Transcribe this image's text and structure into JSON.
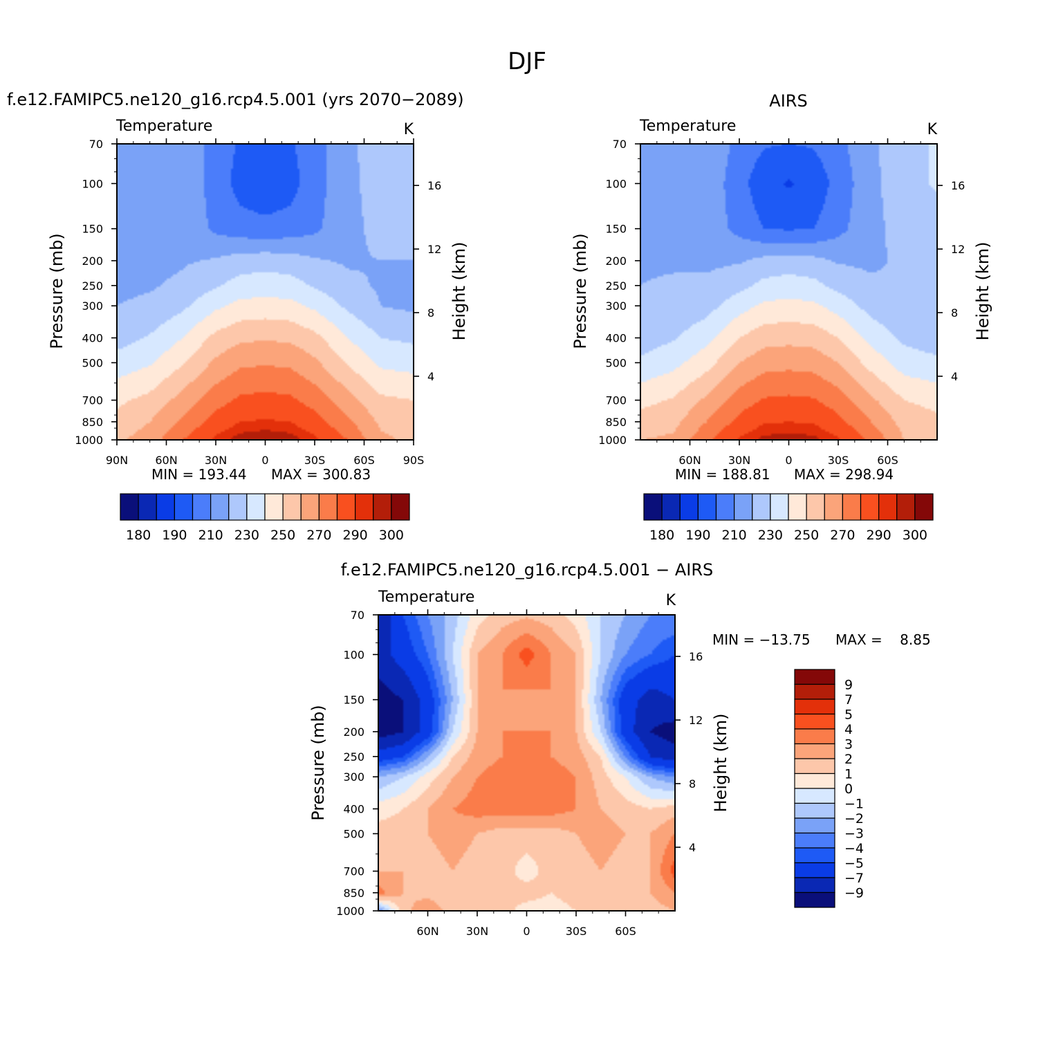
{
  "figure": {
    "title": "DJF"
  },
  "chart_data": [
    {
      "type": "heatmap",
      "id": "model",
      "title": "f.e12.FAMIPC5.ne120_g16.rcp4.5.001 (yrs 2070−2089)",
      "variable": "Temperature",
      "units": "K",
      "xlabel": "",
      "ylabel": "Pressure (mb)",
      "ylabel_right": "Height (km)",
      "x_ticks": [
        "90N",
        "60N",
        "30N",
        "0",
        "30S",
        "60S",
        "90S"
      ],
      "x_tick_values": [
        90,
        60,
        30,
        0,
        -30,
        -60,
        -90
      ],
      "xlim": [
        90,
        -90
      ],
      "y_ticks": [
        70,
        100,
        150,
        200,
        250,
        300,
        400,
        500,
        700,
        850,
        1000
      ],
      "ylim": [
        1000,
        70
      ],
      "y_scale": "log",
      "height_ticks_km": [
        16,
        12,
        8,
        4
      ],
      "min_label": "MIN =  193.44",
      "max_label": "MAX =  300.83",
      "min": 193.44,
      "max": 300.83,
      "field": {
        "lat": [
          90,
          70,
          50,
          30,
          15,
          0,
          -15,
          -30,
          -50,
          -70,
          -90
        ],
        "levels": [
          70,
          100,
          150,
          200,
          250,
          300,
          400,
          500,
          700,
          850,
          1000
        ],
        "values": [
          [
            210,
            216,
            218,
            205,
            199,
            198,
            199,
            205,
            218,
            225,
            227
          ],
          [
            212,
            216,
            217,
            206,
            196,
            193,
            196,
            206,
            217,
            225,
            227
          ],
          [
            214,
            216,
            217,
            208,
            204,
            203,
            204,
            208,
            217,
            223,
            224
          ],
          [
            216,
            217,
            219,
            221,
            225,
            226,
            225,
            221,
            219,
            220,
            220
          ],
          [
            218,
            219,
            222,
            229,
            234,
            235,
            234,
            229,
            222,
            219,
            218
          ],
          [
            220,
            222,
            228,
            238,
            243,
            244,
            243,
            238,
            228,
            220,
            218
          ],
          [
            226,
            231,
            240,
            253,
            258,
            259,
            258,
            253,
            240,
            230,
            228
          ],
          [
            234,
            239,
            249,
            262,
            268,
            269,
            268,
            262,
            249,
            238,
            236
          ],
          [
            248,
            253,
            264,
            276,
            282,
            283,
            282,
            276,
            264,
            252,
            250
          ],
          [
            253,
            260,
            272,
            284,
            290,
            291,
            290,
            284,
            272,
            258,
            255
          ],
          [
            258,
            265,
            280,
            292,
            298,
            300,
            298,
            292,
            280,
            262,
            258
          ]
        ]
      },
      "colorbar": {
        "tick_labels": [
          "180",
          "190",
          "210",
          "230",
          "250",
          "270",
          "290",
          "300"
        ],
        "levels": [
          180,
          185,
          190,
          200,
          210,
          220,
          230,
          240,
          250,
          260,
          270,
          280,
          290,
          295,
          300
        ]
      }
    },
    {
      "type": "heatmap",
      "id": "obs",
      "title": "AIRS",
      "variable": "Temperature",
      "units": "K",
      "xlabel": "",
      "ylabel": "Pressure (mb)",
      "ylabel_right": "Height (km)",
      "x_ticks": [
        "60N",
        "30N",
        "0",
        "30S",
        "60S"
      ],
      "x_tick_values": [
        60,
        30,
        0,
        -30,
        -60
      ],
      "xlim": [
        90,
        -90
      ],
      "y_ticks": [
        70,
        100,
        150,
        200,
        250,
        300,
        400,
        500,
        700,
        850,
        1000
      ],
      "ylim": [
        1000,
        70
      ],
      "y_scale": "log",
      "height_ticks_km": [
        16,
        12,
        8,
        4
      ],
      "min_label": "MIN =  188.81",
      "max_label": "MAX =  298.94",
      "min": 188.81,
      "max": 298.94,
      "field": {
        "lat": [
          90,
          70,
          50,
          30,
          15,
          0,
          -15,
          -30,
          -50,
          -70,
          -90
        ],
        "levels": [
          70,
          100,
          150,
          200,
          250,
          300,
          400,
          500,
          700,
          850,
          1000
        ],
        "values": [
          [
            216,
            217,
            218,
            207,
            201,
            200,
            201,
            207,
            218,
            227,
            231
          ],
          [
            217,
            218,
            217,
            204,
            193,
            189,
            193,
            204,
            217,
            227,
            231
          ],
          [
            218,
            219,
            216,
            207,
            200,
            199,
            200,
            207,
            217,
            224,
            226
          ],
          [
            219,
            219,
            218,
            219,
            223,
            224,
            223,
            219,
            218,
            222,
            222
          ],
          [
            220,
            221,
            222,
            227,
            233,
            235,
            233,
            227,
            222,
            221,
            220
          ],
          [
            221,
            222,
            226,
            236,
            242,
            243,
            242,
            236,
            226,
            221,
            220
          ],
          [
            225,
            229,
            237,
            250,
            256,
            257,
            256,
            250,
            237,
            228,
            225
          ],
          [
            232,
            237,
            246,
            260,
            266,
            267,
            266,
            260,
            246,
            235,
            232
          ],
          [
            247,
            251,
            262,
            275,
            281,
            282,
            281,
            275,
            262,
            250,
            247
          ],
          [
            254,
            257,
            270,
            283,
            289,
            290,
            289,
            283,
            270,
            256,
            252
          ],
          [
            260,
            262,
            278,
            291,
            297,
            298,
            297,
            291,
            278,
            260,
            256
          ]
        ]
      },
      "colorbar": {
        "tick_labels": [
          "180",
          "190",
          "210",
          "230",
          "250",
          "270",
          "290",
          "300"
        ],
        "levels": [
          180,
          185,
          190,
          200,
          210,
          220,
          230,
          240,
          250,
          260,
          270,
          280,
          290,
          295,
          300
        ]
      }
    },
    {
      "type": "heatmap",
      "id": "diff",
      "title": "f.e12.FAMIPC5.ne120_g16.rcp4.5.001 − AIRS",
      "variable": "Temperature",
      "units": "K",
      "xlabel": "",
      "ylabel": "Pressure (mb)",
      "ylabel_right": "Height (km)",
      "x_ticks": [
        "60N",
        "30N",
        "0",
        "30S",
        "60S"
      ],
      "x_tick_values": [
        60,
        30,
        0,
        -30,
        -60
      ],
      "xlim": [
        90,
        -90
      ],
      "y_ticks": [
        70,
        100,
        150,
        200,
        250,
        300,
        400,
        500,
        700,
        850,
        1000
      ],
      "ylim": [
        1000,
        70
      ],
      "y_scale": "log",
      "height_ticks_km": [
        16,
        12,
        8,
        4
      ],
      "min_label": "MIN = −13.75",
      "max_label": "MAX =    8.85",
      "min": -13.75,
      "max": 8.85,
      "field": {
        "lat": [
          90,
          75,
          60,
          45,
          30,
          15,
          0,
          -15,
          -30,
          -45,
          -60,
          -75,
          -90
        ],
        "levels": [
          70,
          100,
          150,
          200,
          250,
          300,
          400,
          500,
          700,
          850,
          1000
        ],
        "values": [
          [
            -9,
            -5,
            -3,
            -1.5,
            0.5,
            1.5,
            1.8,
            1.5,
            0.5,
            -1,
            -2,
            -3,
            -3
          ],
          [
            -8,
            -6,
            -4,
            -1,
            2,
            3,
            4.5,
            3,
            2,
            -1,
            -3,
            -4,
            -5
          ],
          [
            -10,
            -9,
            -6,
            -2,
            2,
            3,
            2.5,
            3,
            2,
            -2,
            -6,
            -8,
            -7
          ],
          [
            -10,
            -9,
            -6,
            -1,
            2,
            3,
            3,
            3,
            2,
            -1,
            -6,
            -9,
            -10
          ],
          [
            -6,
            -5,
            -2,
            1,
            2.5,
            3,
            3.5,
            3,
            2.5,
            1,
            -3,
            -7,
            -8
          ],
          [
            -2,
            -1,
            0.5,
            2,
            3,
            3.5,
            3.5,
            3.5,
            3,
            1.5,
            0,
            -2,
            -3
          ],
          [
            0.5,
            1,
            2,
            3,
            3.5,
            3.5,
            3.5,
            3.5,
            3,
            2,
            1.5,
            1,
            1.5
          ],
          [
            1.5,
            1.5,
            2,
            2.5,
            2,
            1.5,
            1.5,
            1.5,
            2,
            2.5,
            2,
            2,
            3
          ],
          [
            2,
            2,
            1.5,
            2,
            1.5,
            1.5,
            0.5,
            1.5,
            1.5,
            2,
            1.5,
            2,
            4.5
          ],
          [
            3.5,
            2,
            1.5,
            1,
            1.5,
            1,
            1.5,
            1,
            1.5,
            1.5,
            1.5,
            2,
            3
          ],
          [
            -3,
            1.5,
            3,
            1.5,
            1,
            1.5,
            0.5,
            0.5,
            1,
            1.5,
            1,
            1.5,
            2
          ]
        ]
      },
      "colorbar": {
        "tick_labels": [
          "9",
          "7",
          "5",
          "4",
          "3",
          "2",
          "1",
          "0",
          "−1",
          "−2",
          "−3",
          "−4",
          "−5",
          "−7",
          "−9"
        ],
        "levels": [
          9,
          7,
          5,
          4,
          3,
          2,
          1,
          0,
          -1,
          -2,
          -3,
          -4,
          -5,
          -7,
          -9
        ]
      }
    }
  ],
  "colors": {
    "palette": [
      "#0a0f7a",
      "#0a28b4",
      "#0a3ce6",
      "#1e5af5",
      "#4b7dfa",
      "#7aa2f7",
      "#aec8fc",
      "#d7e8ff",
      "#ffe9d9",
      "#fdc7aa",
      "#fba47a",
      "#fa7c4a",
      "#f9501f",
      "#e3300a",
      "#b31e09",
      "#840808"
    ]
  }
}
